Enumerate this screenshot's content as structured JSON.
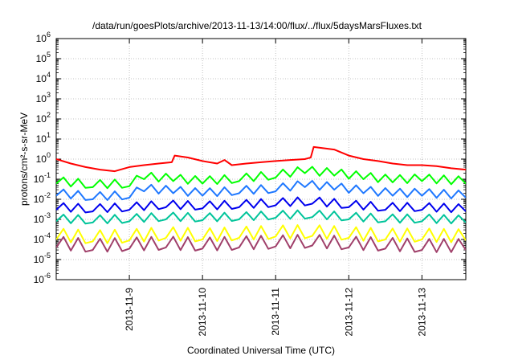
{
  "chart_data": {
    "type": "line",
    "title": "/data/run/goesPlots/archive/2013-11-13/14:00/flux/../flux/5daysMarsFluxes.txt",
    "xlabel": "Coordinated Universal Time (UTC)",
    "ylabel": "protons/cm²-s-sr-MeV",
    "yscale": "log",
    "ylim": [
      1e-06,
      1000000.0
    ],
    "y_ticks": [
      -6,
      -5,
      -4,
      -3,
      -2,
      -1,
      0,
      1,
      2,
      3,
      4,
      5,
      6
    ],
    "xlim_days": [
      8.0,
      13.6
    ],
    "x_ticks": [
      {
        "day": 9,
        "label": "2013-11-9"
      },
      {
        "day": 10,
        "label": "2013-11-10"
      },
      {
        "day": 11,
        "label": "2013-11-11"
      },
      {
        "day": 12,
        "label": "2013-11-12"
      },
      {
        "day": 13,
        "label": "2013-11-13"
      }
    ],
    "grid": true,
    "series": [
      {
        "color": "#ff0000",
        "x": [
          8.0,
          8.2,
          8.4,
          8.6,
          8.8,
          9.0,
          9.2,
          9.4,
          9.58,
          9.62,
          9.8,
          10.0,
          10.2,
          10.3,
          10.4,
          10.6,
          10.8,
          11.0,
          11.2,
          11.4,
          11.48,
          11.52,
          11.8,
          12.0,
          12.2,
          12.4,
          12.6,
          12.8,
          13.0,
          13.2,
          13.4,
          13.6
        ],
        "values": [
          1.0,
          0.6,
          0.4,
          0.3,
          0.25,
          0.4,
          0.5,
          0.6,
          0.7,
          1.5,
          1.2,
          0.8,
          0.6,
          0.9,
          0.5,
          0.6,
          0.7,
          0.8,
          0.9,
          1.0,
          1.2,
          4.0,
          3.0,
          1.5,
          1.0,
          0.8,
          0.6,
          0.5,
          0.5,
          0.45,
          0.35,
          0.3
        ]
      },
      {
        "color": "#00ff00",
        "x": [
          8.0,
          8.5,
          9.0,
          9.2,
          9.6,
          10.0,
          10.5,
          11.0,
          11.4,
          11.8,
          12.2,
          12.6,
          13.0,
          13.6
        ],
        "values": [
          0.06,
          0.04,
          0.045,
          0.1,
          0.08,
          0.06,
          0.08,
          0.12,
          0.2,
          0.15,
          0.1,
          0.07,
          0.08,
          0.06
        ]
      },
      {
        "color": "#1f78ff",
        "x": [
          8.0,
          8.5,
          9.0,
          9.2,
          9.6,
          10.0,
          10.5,
          11.0,
          11.4,
          11.8,
          12.2,
          12.6,
          13.0,
          13.6
        ],
        "values": [
          0.015,
          0.01,
          0.012,
          0.025,
          0.02,
          0.015,
          0.02,
          0.025,
          0.04,
          0.03,
          0.02,
          0.015,
          0.015,
          0.012
        ]
      },
      {
        "color": "#0000ee",
        "x": [
          8.0,
          8.5,
          9.0,
          9.5,
          10.0,
          10.5,
          11.0,
          11.5,
          12.0,
          12.5,
          13.0,
          13.6
        ],
        "values": [
          0.003,
          0.0025,
          0.003,
          0.004,
          0.0035,
          0.004,
          0.005,
          0.006,
          0.004,
          0.003,
          0.003,
          0.0025
        ]
      },
      {
        "color": "#00c49a",
        "x": [
          8.0,
          8.5,
          9.0,
          9.5,
          10.0,
          10.5,
          11.0,
          11.5,
          12.0,
          12.5,
          13.0,
          13.6
        ],
        "values": [
          0.0008,
          0.0007,
          0.0008,
          0.001,
          0.0009,
          0.001,
          0.0012,
          0.0013,
          0.001,
          0.0008,
          0.0008,
          0.0007
        ]
      },
      {
        "color": "#ffff00",
        "x": [
          8.0,
          8.5,
          9.0,
          9.5,
          10.0,
          10.5,
          11.0,
          11.5,
          12.0,
          12.5,
          13.0,
          13.6
        ],
        "values": [
          0.0001,
          8e-05,
          9e-05,
          0.00012,
          0.0001,
          0.00012,
          0.00014,
          0.00015,
          0.00012,
          0.0001,
          0.0001,
          9e-05
        ]
      },
      {
        "color": "#a0406a",
        "x": [
          8.0,
          8.5,
          9.0,
          9.5,
          10.0,
          10.5,
          11.0,
          11.5,
          12.0,
          12.5,
          13.0,
          13.6
        ],
        "values": [
          4e-05,
          3e-05,
          3.5e-05,
          4e-05,
          3.5e-05,
          4e-05,
          4.5e-05,
          5e-05,
          4e-05,
          3.5e-05,
          3e-05,
          3e-05
        ]
      }
    ]
  }
}
